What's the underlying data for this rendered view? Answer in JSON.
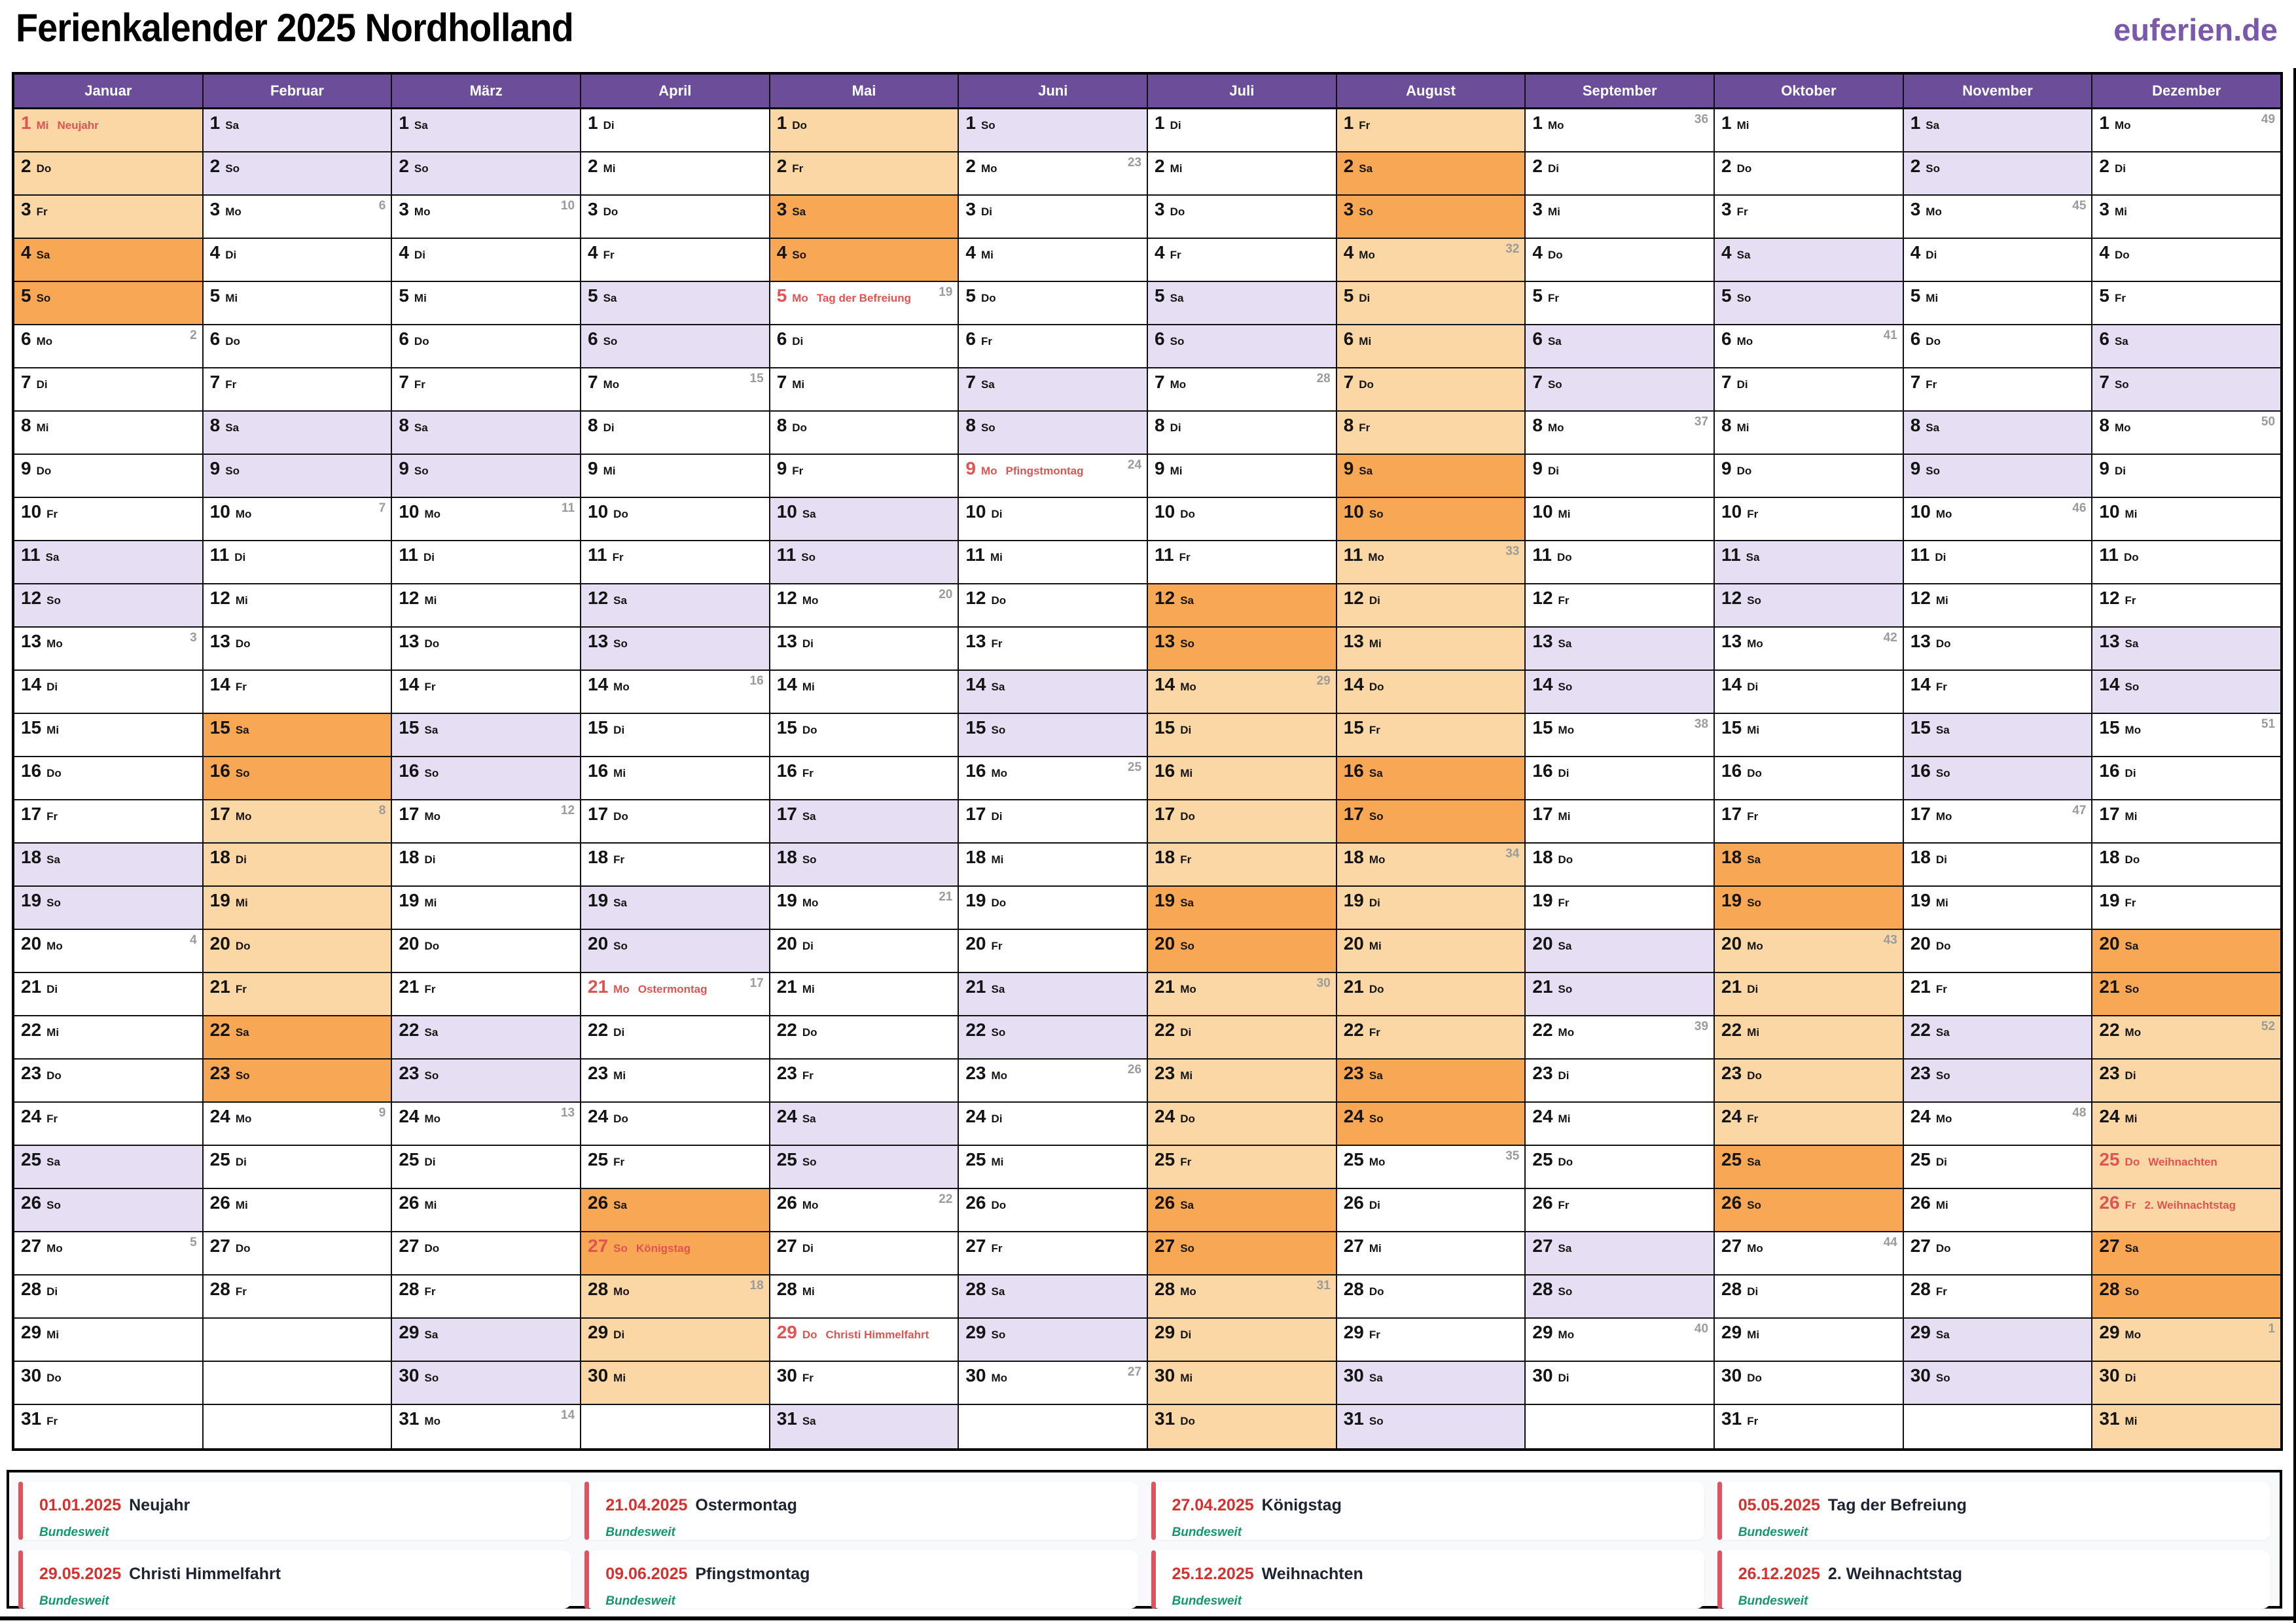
{
  "header": {
    "title": "Ferienkalender 2025 Nordholland",
    "site": "euferien.de"
  },
  "weekday_abbr": [
    "Mo",
    "Di",
    "Mi",
    "Do",
    "Fr",
    "Sa",
    "So"
  ],
  "months": [
    {
      "name": "Januar",
      "start": 2,
      "days": 31,
      "weeks": {
        "6": 2,
        "13": 3,
        "20": 4,
        "27": 5
      },
      "vacation": [
        [
          1,
          5
        ]
      ],
      "holidays": {
        "1": "Neujahr"
      }
    },
    {
      "name": "Februar",
      "start": 5,
      "days": 28,
      "weeks": {
        "3": 6,
        "10": 7,
        "17": 8,
        "24": 9
      },
      "vacation": [
        [
          15,
          23
        ]
      ],
      "holidays": {}
    },
    {
      "name": "März",
      "start": 5,
      "days": 31,
      "weeks": {
        "3": 10,
        "10": 11,
        "17": 12,
        "24": 13,
        "31": 14
      },
      "vacation": [],
      "holidays": {}
    },
    {
      "name": "April",
      "start": 1,
      "days": 30,
      "weeks": {
        "7": 15,
        "14": 16,
        "21": 17,
        "28": 18
      },
      "vacation": [
        [
          26,
          30
        ]
      ],
      "holidays": {
        "21": "Ostermontag",
        "27": "Königstag"
      }
    },
    {
      "name": "Mai",
      "start": 3,
      "days": 31,
      "weeks": {
        "5": 19,
        "12": 20,
        "19": 21,
        "26": 22
      },
      "vacation": [
        [
          1,
          4
        ]
      ],
      "holidays": {
        "5": "Tag der Befreiung",
        "29": "Christi Himmelfahrt"
      }
    },
    {
      "name": "Juni",
      "start": 6,
      "days": 30,
      "weeks": {
        "2": 23,
        "9": 24,
        "16": 25,
        "23": 26,
        "30": 27
      },
      "vacation": [],
      "holidays": {
        "9": "Pfingstmontag"
      }
    },
    {
      "name": "Juli",
      "start": 1,
      "days": 31,
      "weeks": {
        "7": 28,
        "14": 29,
        "21": 30,
        "28": 31
      },
      "vacation": [
        [
          12,
          31
        ]
      ],
      "holidays": {}
    },
    {
      "name": "August",
      "start": 4,
      "days": 31,
      "weeks": {
        "4": 32,
        "11": 33,
        "18": 34,
        "25": 35
      },
      "vacation": [
        [
          1,
          24
        ]
      ],
      "holidays": {}
    },
    {
      "name": "September",
      "start": 0,
      "days": 30,
      "weeks": {
        "1": 36,
        "8": 37,
        "15": 38,
        "22": 39,
        "29": 40
      },
      "vacation": [],
      "holidays": {}
    },
    {
      "name": "Oktober",
      "start": 2,
      "days": 31,
      "weeks": {
        "6": 41,
        "13": 42,
        "20": 43,
        "27": 44
      },
      "vacation": [
        [
          18,
          26
        ]
      ],
      "holidays": {}
    },
    {
      "name": "November",
      "start": 5,
      "days": 30,
      "weeks": {
        "3": 45,
        "10": 46,
        "17": 47,
        "24": 48
      },
      "vacation": [],
      "holidays": {}
    },
    {
      "name": "Dezember",
      "start": 0,
      "days": 31,
      "weeks": {
        "1": 49,
        "8": 50,
        "15": 51,
        "22": 52,
        "29": 1
      },
      "vacation": [
        [
          20,
          31
        ]
      ],
      "holidays": {
        "25": "Weihnachten",
        "26": "2. Weihnachtstag"
      }
    }
  ],
  "legend": {
    "items": [
      {
        "date": "01.01.2025",
        "name": "Neujahr",
        "scope": "Bundesweit"
      },
      {
        "date": "21.04.2025",
        "name": "Ostermontag",
        "scope": "Bundesweit"
      },
      {
        "date": "27.04.2025",
        "name": "Königstag",
        "scope": "Bundesweit"
      },
      {
        "date": "05.05.2025",
        "name": "Tag der Befreiung",
        "scope": "Bundesweit"
      },
      {
        "date": "29.05.2025",
        "name": "Christi Himmelfahrt",
        "scope": "Bundesweit"
      },
      {
        "date": "09.06.2025",
        "name": "Pfingstmontag",
        "scope": "Bundesweit"
      },
      {
        "date": "25.12.2025",
        "name": "Weihnachten",
        "scope": "Bundesweit"
      },
      {
        "date": "26.12.2025",
        "name": "2. Weihnachtstag",
        "scope": "Bundesweit"
      }
    ]
  },
  "colors": {
    "header_purple": "#6B4D99",
    "vacation_weekday": "#FBD7A5",
    "vacation_weekend": "#F8A855",
    "weekend": "#E6DEF2",
    "holiday_red": "#E05353",
    "week_number_gray": "#9B9B9B",
    "legend_date_red": "#D5312E",
    "legend_scope_green": "#14976D",
    "legend_bar_red": "#E05260",
    "logo_purple": "#7A58AC"
  }
}
